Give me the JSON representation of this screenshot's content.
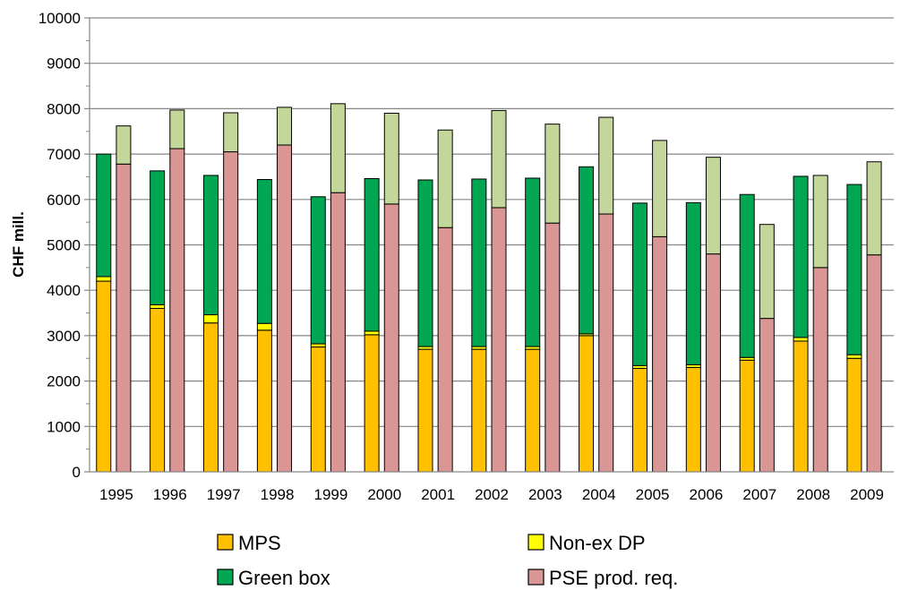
{
  "chart_data": {
    "type": "bar",
    "stacked": true,
    "categories": [
      "1995",
      "1996",
      "1997",
      "1998",
      "1999",
      "2000",
      "2001",
      "2002",
      "2003",
      "2004",
      "2005",
      "2006",
      "2007",
      "2008",
      "2009"
    ],
    "ylabel": "CHF mill.",
    "ylim": [
      0,
      10000
    ],
    "yticks": [
      0,
      1000,
      2000,
      3000,
      4000,
      5000,
      6000,
      7000,
      8000,
      9000,
      10000
    ],
    "grid": true,
    "legend_position": "bottom",
    "legend": [
      "MPS",
      "Non-ex DP",
      "Green box",
      "PSE prod. req."
    ],
    "bars_left": {
      "series": [
        {
          "name": "MPS",
          "color": "#FFC000",
          "values": [
            4200,
            3600,
            3280,
            3120,
            2750,
            3020,
            2700,
            2700,
            2700,
            3000,
            2280,
            2300,
            2460,
            2880,
            2500
          ]
        },
        {
          "name": "Non-ex DP",
          "color": "#FFFF00",
          "values": [
            100,
            80,
            180,
            150,
            70,
            80,
            60,
            60,
            60,
            40,
            60,
            60,
            60,
            80,
            80
          ]
        },
        {
          "name": "Green box",
          "color": "#00A651",
          "values": [
            2700,
            2950,
            3070,
            3170,
            3240,
            3360,
            3670,
            3690,
            3710,
            3680,
            3580,
            3570,
            3590,
            3550,
            3750
          ]
        }
      ]
    },
    "bars_right": {
      "series": [
        {
          "name": "PSE prod. req.",
          "color": "#D99694",
          "values": [
            6780,
            7120,
            7050,
            7200,
            6150,
            5900,
            5380,
            5820,
            5480,
            5680,
            5180,
            4800,
            3380,
            4500,
            4780
          ]
        },
        {
          "color": "#C4D79B",
          "values": [
            840,
            850,
            860,
            830,
            1960,
            2000,
            2150,
            2140,
            2180,
            2130,
            2120,
            2130,
            2070,
            2030,
            2050
          ]
        }
      ]
    }
  }
}
